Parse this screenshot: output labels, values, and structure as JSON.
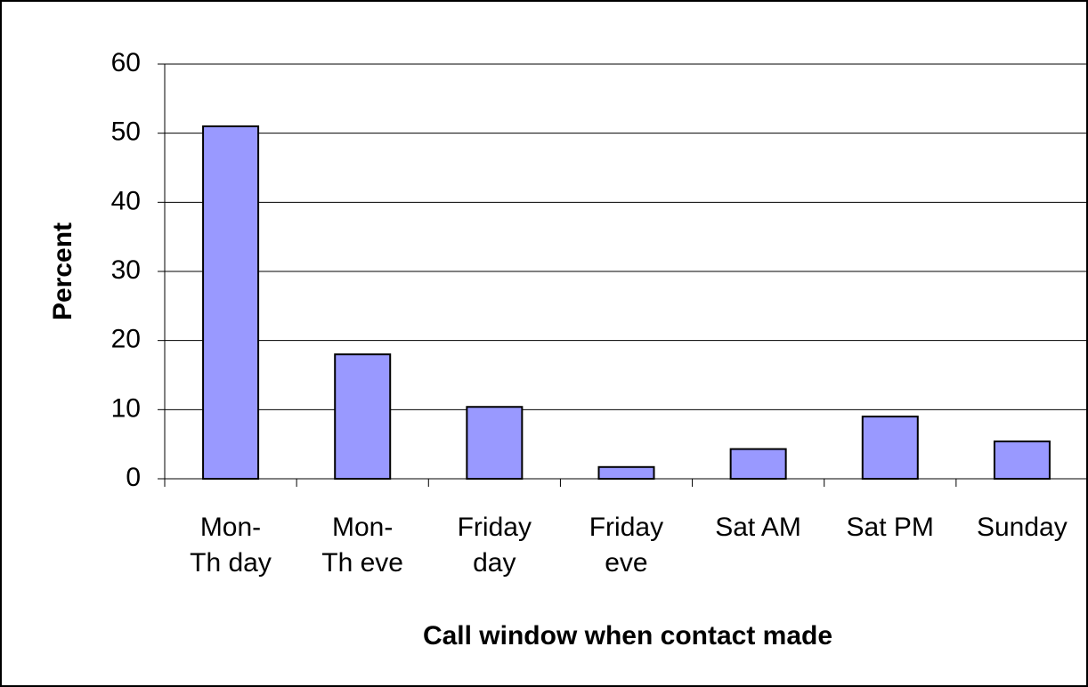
{
  "chart_data": {
    "type": "bar",
    "xlabel": "Call window when contact made",
    "ylabel": "Percent",
    "categories": [
      "Mon-\nTh day",
      "Mon-\nTh eve",
      "Friday\nday",
      "Friday\neve",
      "Sat AM",
      "Sat PM",
      "Sunday"
    ],
    "values": [
      51,
      18,
      10.4,
      1.7,
      4.3,
      9,
      5.4
    ],
    "color": "#9999ff",
    "ylim": [
      0,
      60
    ],
    "yticks": [
      0,
      10,
      20,
      30,
      40,
      50,
      60
    ],
    "grid": true
  }
}
